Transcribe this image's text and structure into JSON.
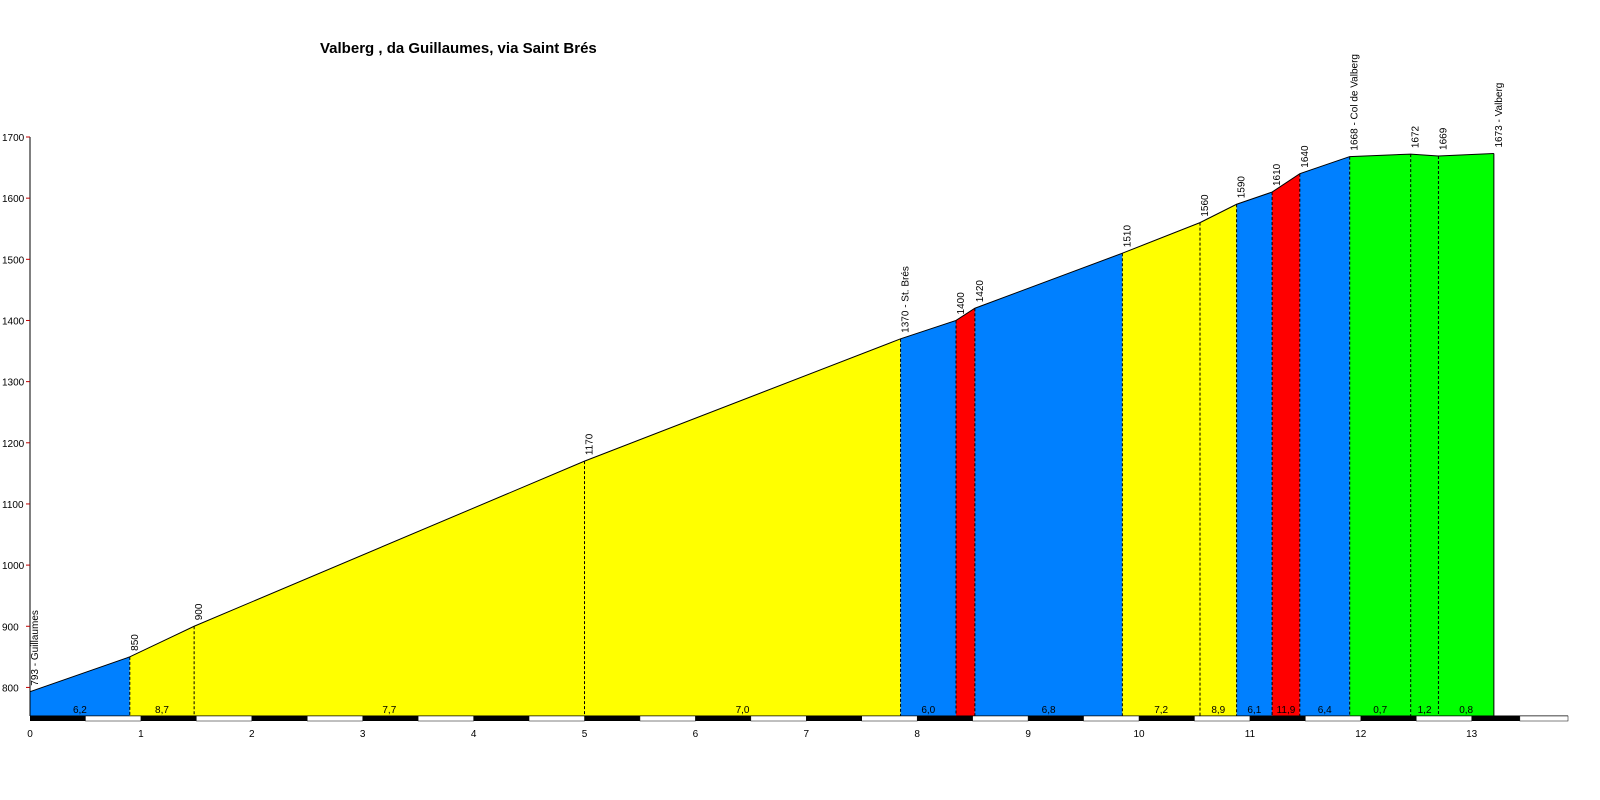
{
  "chart_data": {
    "type": "area",
    "title": "Valberg , da Guillaumes, via Saint Brés",
    "xlabel": "",
    "ylabel": "",
    "xlim": [
      0,
      13.9
    ],
    "ylim": [
      750,
      1700
    ],
    "x_ticks": [
      0,
      1,
      2,
      3,
      4,
      5,
      6,
      7,
      8,
      9,
      10,
      11,
      12,
      13
    ],
    "y_ticks": [
      800,
      900,
      1000,
      1100,
      1200,
      1300,
      1400,
      1500,
      1600,
      1700
    ],
    "grid": false,
    "legend": "none",
    "points": [
      {
        "x": 0.0,
        "y": 793,
        "label": "793 - Guillaumes"
      },
      {
        "x": 0.9,
        "y": 850,
        "label": "850"
      },
      {
        "x": 1.48,
        "y": 900,
        "label": "900"
      },
      {
        "x": 5.0,
        "y": 1170,
        "label": "1170"
      },
      {
        "x": 7.85,
        "y": 1370,
        "label": "1370 - St. Brés"
      },
      {
        "x": 8.35,
        "y": 1400,
        "label": "1400"
      },
      {
        "x": 8.52,
        "y": 1420,
        "label": "1420"
      },
      {
        "x": 9.85,
        "y": 1510,
        "label": "1510"
      },
      {
        "x": 10.55,
        "y": 1560,
        "label": "1560"
      },
      {
        "x": 10.88,
        "y": 1590,
        "label": "1590"
      },
      {
        "x": 11.2,
        "y": 1610,
        "label": "1610"
      },
      {
        "x": 11.45,
        "y": 1640,
        "label": "1640"
      },
      {
        "x": 11.9,
        "y": 1668,
        "label": "1668 - Col de Valberg"
      },
      {
        "x": 12.45,
        "y": 1672,
        "label": "1672"
      },
      {
        "x": 12.7,
        "y": 1669,
        "label": "1669"
      },
      {
        "x": 13.2,
        "y": 1673,
        "label": "1673 - Valberg"
      }
    ],
    "segments": [
      {
        "gradient": "6,2",
        "color": "#0080ff"
      },
      {
        "gradient": "8,7",
        "color": "#ffff00"
      },
      {
        "gradient": "7,7",
        "color": "#ffff00"
      },
      {
        "gradient": "7,0",
        "color": "#ffff00"
      },
      {
        "gradient": "6,0",
        "color": "#0080ff"
      },
      {
        "gradient": "",
        "color": "#ff0000"
      },
      {
        "gradient": "6,8",
        "color": "#0080ff"
      },
      {
        "gradient": "7,2",
        "color": "#ffff00"
      },
      {
        "gradient": "8,9",
        "color": "#ffff00"
      },
      {
        "gradient": "6,1",
        "color": "#0080ff"
      },
      {
        "gradient": "11,9",
        "color": "#ff0000"
      },
      {
        "gradient": "6,4",
        "color": "#0080ff"
      },
      {
        "gradient": "0,7",
        "color": "#00ff00"
      },
      {
        "gradient": "1,2",
        "color": "#00ff00"
      },
      {
        "gradient": "0,8",
        "color": "#00ff00"
      }
    ]
  }
}
